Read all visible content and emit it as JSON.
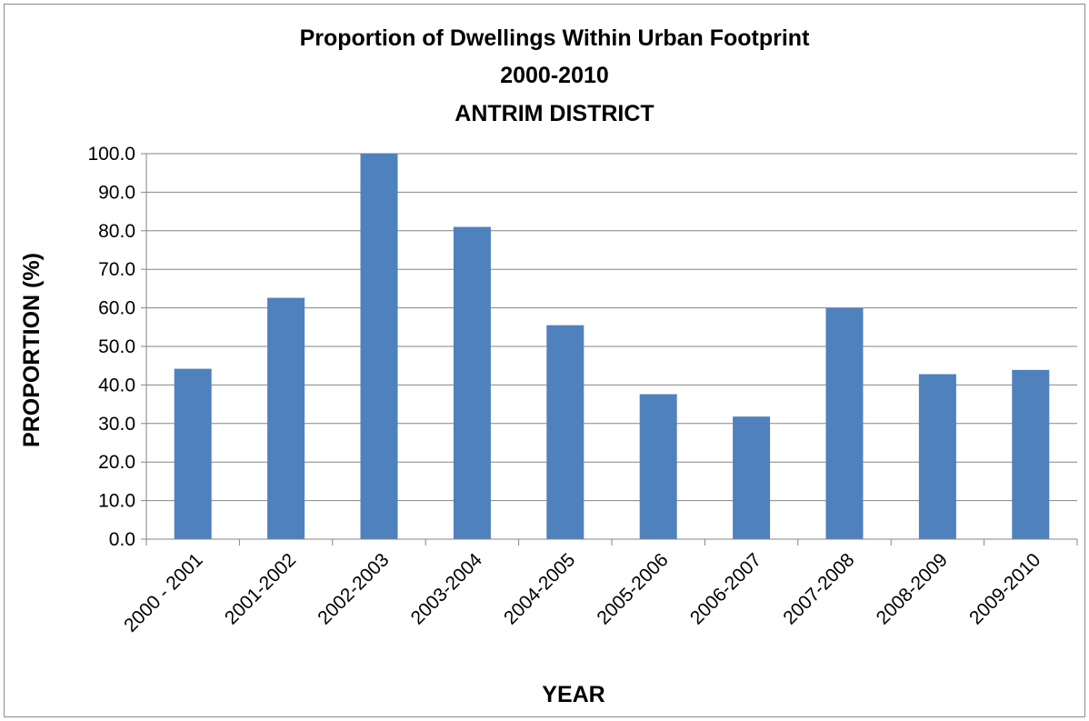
{
  "chart_data": {
    "type": "bar",
    "title_lines": [
      "Proportion of Dwellings Within Urban Footprint",
      "2000-2010",
      "ANTRIM DISTRICT"
    ],
    "xlabel": "YEAR",
    "ylabel": "PROPORTION (%)",
    "ylim": [
      0,
      100
    ],
    "yticks": [
      "0.0",
      "10.0",
      "20.0",
      "30.0",
      "40.0",
      "50.0",
      "60.0",
      "70.0",
      "80.0",
      "90.0",
      "100.0"
    ],
    "categories": [
      "2000 - 2001",
      "2001-2002",
      "2002-2003",
      "2003-2004",
      "2004-2005",
      "2005-2006",
      "2006-2007",
      "2007-2008",
      "2008-2009",
      "2009-2010"
    ],
    "values": [
      44.2,
      62.6,
      100.0,
      81.0,
      55.5,
      37.6,
      31.8,
      60.0,
      42.8,
      43.9
    ],
    "bar_color": "#4f81bd",
    "grid": true,
    "legend": "none"
  }
}
